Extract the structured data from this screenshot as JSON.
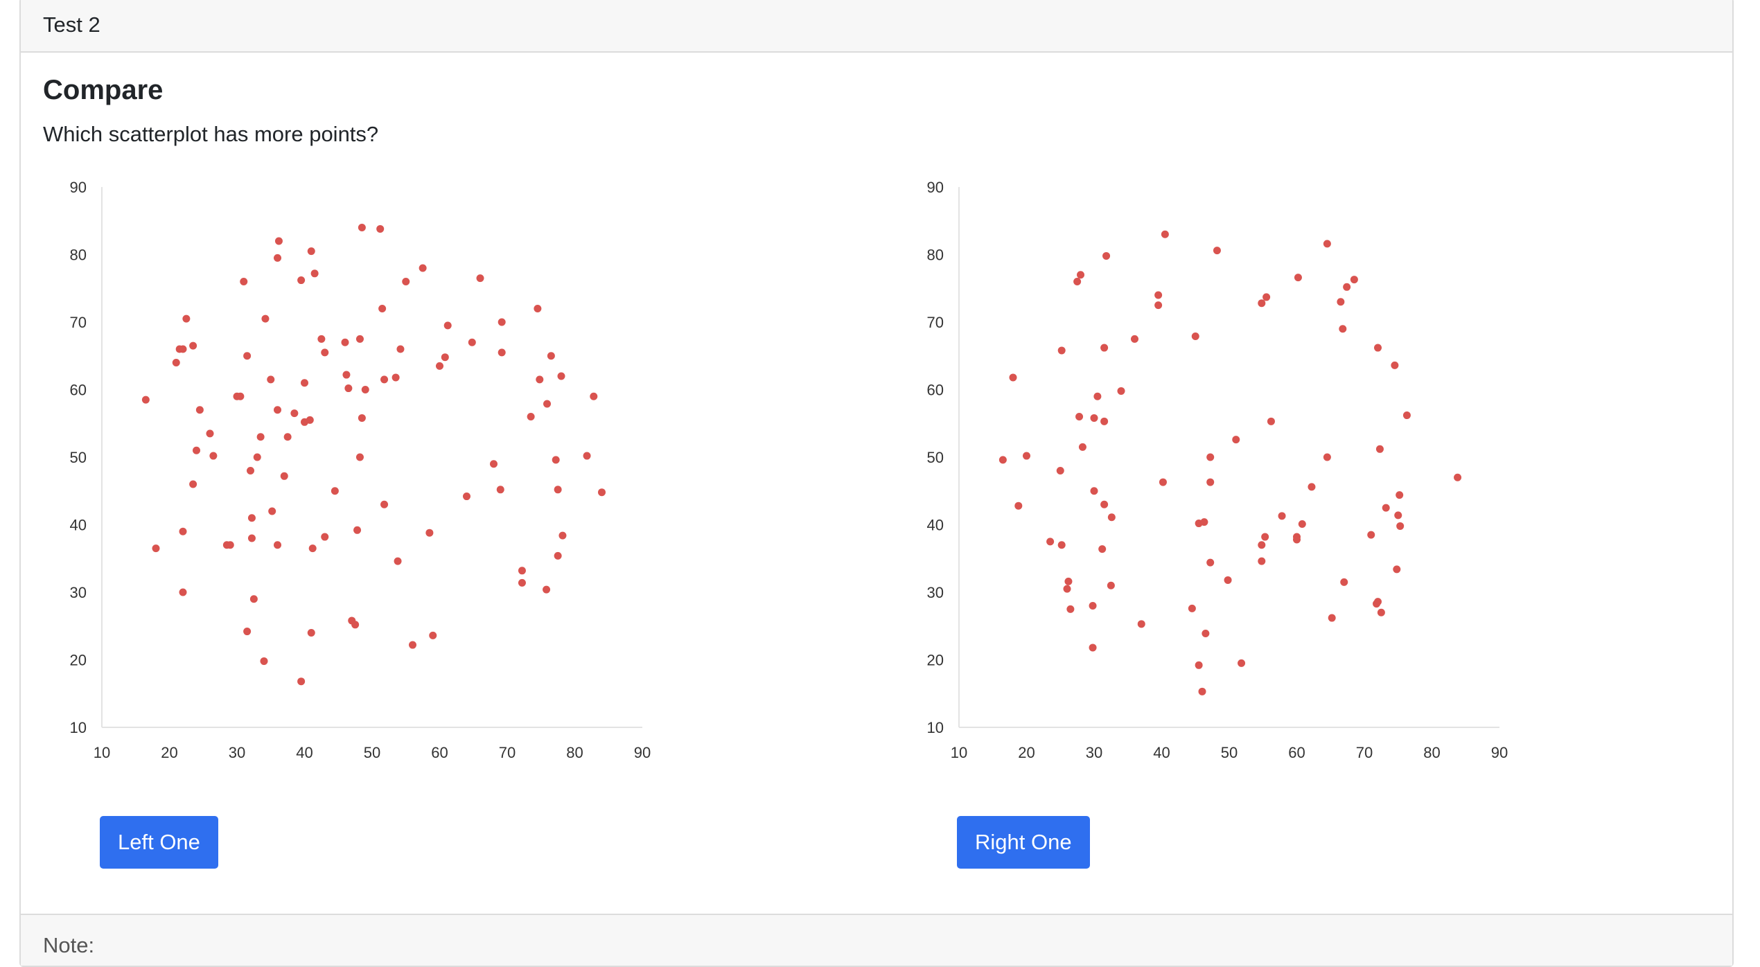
{
  "header": {
    "title": "Test 2"
  },
  "main": {
    "title": "Compare",
    "question": "Which scatterplot has more points?",
    "left_button": "Left One",
    "right_button": "Right One"
  },
  "footer": {
    "note": "Note:"
  },
  "colors": {
    "point": "#d9534f",
    "button": "#2f6fef"
  },
  "chart_data": [
    {
      "type": "scatter",
      "xlim": [
        10,
        90
      ],
      "ylim": [
        10,
        90
      ],
      "xticks": [
        10,
        20,
        30,
        40,
        50,
        60,
        70,
        80,
        90
      ],
      "yticks": [
        10,
        20,
        30,
        40,
        50,
        60,
        70,
        80,
        90
      ],
      "grid": false,
      "points": [
        [
          16.5,
          58.5
        ],
        [
          18,
          36.5
        ],
        [
          21,
          64
        ],
        [
          21.5,
          66
        ],
        [
          22,
          66
        ],
        [
          22.5,
          70.5
        ],
        [
          22,
          39
        ],
        [
          22,
          30
        ],
        [
          23.5,
          66.5
        ],
        [
          23.5,
          46
        ],
        [
          24,
          51
        ],
        [
          24.5,
          57
        ],
        [
          26,
          53.5
        ],
        [
          26.5,
          50.2
        ],
        [
          28.5,
          37
        ],
        [
          29,
          37
        ],
        [
          30,
          59
        ],
        [
          30.5,
          59
        ],
        [
          31,
          76
        ],
        [
          31.5,
          65
        ],
        [
          31.5,
          24.2
        ],
        [
          32,
          48
        ],
        [
          32.2,
          41
        ],
        [
          32.2,
          38
        ],
        [
          32.5,
          29
        ],
        [
          33,
          50
        ],
        [
          33.5,
          53
        ],
        [
          34,
          19.8
        ],
        [
          34.2,
          70.5
        ],
        [
          35,
          61.5
        ],
        [
          35.2,
          42
        ],
        [
          36,
          37
        ],
        [
          36,
          57
        ],
        [
          36,
          79.5
        ],
        [
          36.2,
          82
        ],
        [
          37,
          47.2
        ],
        [
          37.5,
          53
        ],
        [
          38.5,
          56.5
        ],
        [
          39.5,
          76.2
        ],
        [
          39.5,
          16.8
        ],
        [
          40,
          61
        ],
        [
          40,
          55.2
        ],
        [
          40.8,
          55.5
        ],
        [
          41,
          80.5
        ],
        [
          41,
          24
        ],
        [
          41.2,
          36.5
        ],
        [
          41.5,
          77.2
        ],
        [
          42.5,
          67.5
        ],
        [
          43,
          65.5
        ],
        [
          43,
          38.2
        ],
        [
          44.5,
          45
        ],
        [
          46,
          67
        ],
        [
          46.2,
          62.2
        ],
        [
          46.5,
          60.2
        ],
        [
          47,
          25.8
        ],
        [
          47.5,
          25.2
        ],
        [
          47.8,
          39.2
        ],
        [
          48.2,
          50
        ],
        [
          48.2,
          67.5
        ],
        [
          48.5,
          55.8
        ],
        [
          48.5,
          84
        ],
        [
          49,
          60
        ],
        [
          51.2,
          83.8
        ],
        [
          51.5,
          72
        ],
        [
          51.8,
          61.5
        ],
        [
          51.8,
          43
        ],
        [
          53.5,
          61.8
        ],
        [
          53.8,
          34.6
        ],
        [
          54.2,
          66
        ],
        [
          55,
          76
        ],
        [
          56,
          22.2
        ],
        [
          57.5,
          78
        ],
        [
          58.5,
          38.8
        ],
        [
          59,
          23.6
        ],
        [
          60,
          63.5
        ],
        [
          60.8,
          64.8
        ],
        [
          61.2,
          69.5
        ],
        [
          64,
          44.2
        ],
        [
          64.8,
          67
        ],
        [
          66,
          76.5
        ],
        [
          68,
          49
        ],
        [
          69,
          45.2
        ],
        [
          69.2,
          70
        ],
        [
          69.2,
          65.5
        ],
        [
          72.2,
          33.2
        ],
        [
          72.2,
          31.4
        ],
        [
          73.5,
          56
        ],
        [
          74.5,
          72
        ],
        [
          74.8,
          61.5
        ],
        [
          75.8,
          30.4
        ],
        [
          75.9,
          57.9
        ],
        [
          76.5,
          65
        ],
        [
          77.2,
          49.6
        ],
        [
          77.5,
          45.2
        ],
        [
          77.5,
          35.4
        ],
        [
          78,
          62
        ],
        [
          78.2,
          38.4
        ],
        [
          81.8,
          50.2
        ],
        [
          82.8,
          59
        ],
        [
          84,
          44.8
        ]
      ]
    },
    {
      "type": "scatter",
      "xlim": [
        10,
        90
      ],
      "ylim": [
        10,
        90
      ],
      "xticks": [
        10,
        20,
        30,
        40,
        50,
        60,
        70,
        80,
        90
      ],
      "yticks": [
        10,
        20,
        30,
        40,
        50,
        60,
        70,
        80,
        90
      ],
      "grid": false,
      "points": [
        [
          16.5,
          49.6
        ],
        [
          18,
          61.8
        ],
        [
          18.8,
          42.8
        ],
        [
          20,
          50.2
        ],
        [
          23.5,
          37.5
        ],
        [
          25,
          48
        ],
        [
          25.2,
          37
        ],
        [
          25.2,
          65.8
        ],
        [
          26,
          30.5
        ],
        [
          26.2,
          31.6
        ],
        [
          26.5,
          27.5
        ],
        [
          27.5,
          76
        ],
        [
          27.8,
          56
        ],
        [
          28,
          77
        ],
        [
          28.3,
          51.5
        ],
        [
          29.8,
          28
        ],
        [
          29.8,
          21.8
        ],
        [
          30,
          45
        ],
        [
          30,
          55.8
        ],
        [
          30.5,
          59
        ],
        [
          31.2,
          36.4
        ],
        [
          31.5,
          43
        ],
        [
          31.5,
          66.2
        ],
        [
          31.5,
          55.3
        ],
        [
          31.8,
          79.8
        ],
        [
          32.5,
          31
        ],
        [
          32.6,
          41.1
        ],
        [
          34,
          59.8
        ],
        [
          36,
          67.5
        ],
        [
          37,
          25.3
        ],
        [
          39.5,
          74
        ],
        [
          39.5,
          72.5
        ],
        [
          40.2,
          46.3
        ],
        [
          40.5,
          83
        ],
        [
          44.5,
          27.6
        ],
        [
          45,
          67.9
        ],
        [
          45.5,
          40.2
        ],
        [
          45.5,
          19.2
        ],
        [
          46,
          15.3
        ],
        [
          46.3,
          40.4
        ],
        [
          46.5,
          23.9
        ],
        [
          47.2,
          50
        ],
        [
          47.2,
          46.3
        ],
        [
          47.2,
          34.4
        ],
        [
          48.2,
          80.6
        ],
        [
          49.8,
          31.8
        ],
        [
          51,
          52.6
        ],
        [
          51.8,
          19.5
        ],
        [
          54.8,
          72.8
        ],
        [
          54.8,
          37
        ],
        [
          54.8,
          34.6
        ],
        [
          55.3,
          38.2
        ],
        [
          55.5,
          73.7
        ],
        [
          56.2,
          55.3
        ],
        [
          57.8,
          41.3
        ],
        [
          60,
          38.2
        ],
        [
          60,
          37.8
        ],
        [
          60.2,
          76.6
        ],
        [
          60.8,
          40.1
        ],
        [
          62.2,
          45.6
        ],
        [
          64.5,
          81.6
        ],
        [
          64.5,
          50
        ],
        [
          65.2,
          26.2
        ],
        [
          66.5,
          73
        ],
        [
          66.8,
          69
        ],
        [
          67,
          31.5
        ],
        [
          67.4,
          75.2
        ],
        [
          68.5,
          76.3
        ],
        [
          71,
          38.5
        ],
        [
          71.8,
          28.3
        ],
        [
          72,
          28.6
        ],
        [
          72,
          66.2
        ],
        [
          72.3,
          51.2
        ],
        [
          72.5,
          27
        ],
        [
          73.2,
          42.5
        ],
        [
          74.5,
          63.6
        ],
        [
          74.8,
          33.4
        ],
        [
          75,
          41.4
        ],
        [
          75.2,
          44.4
        ],
        [
          75.3,
          39.8
        ],
        [
          76.3,
          56.2
        ],
        [
          83.8,
          47
        ]
      ]
    }
  ]
}
